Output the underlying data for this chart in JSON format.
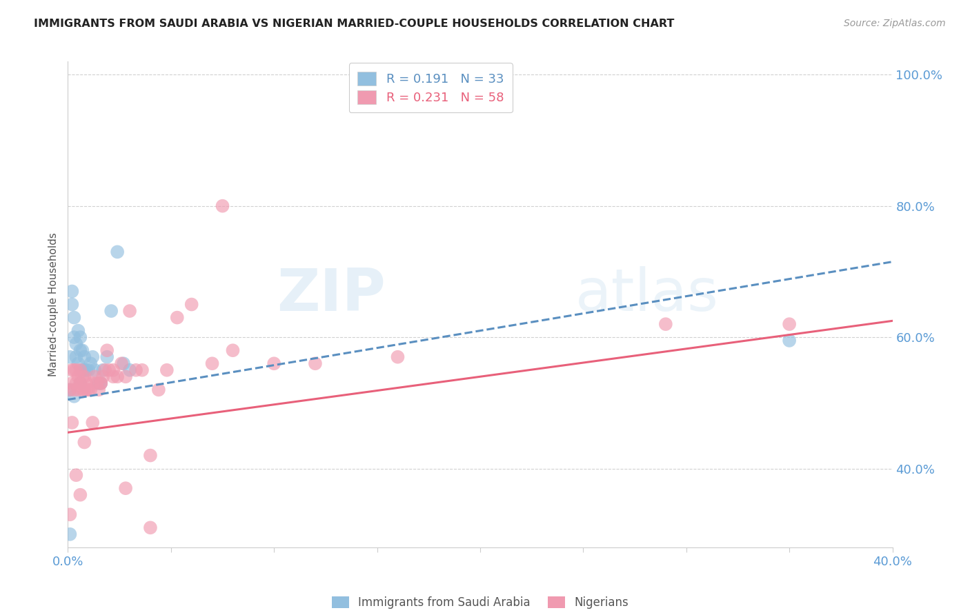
{
  "title": "IMMIGRANTS FROM SAUDI ARABIA VS NIGERIAN MARRIED-COUPLE HOUSEHOLDS CORRELATION CHART",
  "source": "Source: ZipAtlas.com",
  "ylabel": "Married-couple Households",
  "xlim": [
    0.0,
    0.4
  ],
  "ylim": [
    0.28,
    1.02
  ],
  "ytick_vals": [
    0.4,
    0.6,
    0.8,
    1.0
  ],
  "ytick_labels": [
    "40.0%",
    "60.0%",
    "80.0%",
    "100.0%"
  ],
  "xtick_show": [
    "0.0%",
    "40.0%"
  ],
  "series1_color": "#92bfdf",
  "series2_color": "#f09ab0",
  "line1_color": "#5a8fc0",
  "line2_color": "#e8607a",
  "background_color": "#ffffff",
  "grid_color": "#d0d0d0",
  "axis_color": "#5b9bd5",
  "watermark": "ZIPatlas",
  "title_fontsize": 11.5,
  "source_fontsize": 10,
  "sa_line_x0": 0.0,
  "sa_line_y0": 0.505,
  "sa_line_x1": 0.4,
  "sa_line_y1": 0.715,
  "ng_line_x0": 0.0,
  "ng_line_y0": 0.455,
  "ng_line_x1": 0.4,
  "ng_line_y1": 0.625,
  "sa_x": [
    0.001,
    0.002,
    0.002,
    0.003,
    0.003,
    0.004,
    0.004,
    0.005,
    0.005,
    0.006,
    0.006,
    0.007,
    0.007,
    0.008,
    0.008,
    0.009,
    0.01,
    0.011,
    0.012,
    0.013,
    0.015,
    0.016,
    0.017,
    0.019,
    0.021,
    0.024,
    0.027,
    0.03,
    0.001,
    0.003,
    0.006,
    0.35,
    0.001
  ],
  "sa_y": [
    0.57,
    0.65,
    0.67,
    0.6,
    0.63,
    0.57,
    0.59,
    0.56,
    0.61,
    0.58,
    0.6,
    0.55,
    0.58,
    0.57,
    0.55,
    0.55,
    0.55,
    0.56,
    0.57,
    0.55,
    0.53,
    0.53,
    0.55,
    0.57,
    0.64,
    0.73,
    0.56,
    0.55,
    0.52,
    0.51,
    0.53,
    0.595,
    0.3
  ],
  "ng_x": [
    0.001,
    0.002,
    0.002,
    0.003,
    0.003,
    0.004,
    0.004,
    0.005,
    0.005,
    0.006,
    0.006,
    0.007,
    0.007,
    0.008,
    0.008,
    0.009,
    0.009,
    0.01,
    0.011,
    0.012,
    0.013,
    0.014,
    0.015,
    0.016,
    0.017,
    0.018,
    0.019,
    0.02,
    0.022,
    0.024,
    0.026,
    0.028,
    0.03,
    0.033,
    0.036,
    0.04,
    0.044,
    0.048,
    0.053,
    0.06,
    0.07,
    0.08,
    0.1,
    0.12,
    0.16,
    0.35,
    0.001,
    0.002,
    0.004,
    0.006,
    0.008,
    0.012,
    0.016,
    0.022,
    0.028,
    0.04,
    0.075,
    0.29
  ],
  "ng_y": [
    0.52,
    0.53,
    0.55,
    0.52,
    0.55,
    0.53,
    0.55,
    0.52,
    0.54,
    0.53,
    0.55,
    0.52,
    0.54,
    0.52,
    0.54,
    0.53,
    0.52,
    0.52,
    0.52,
    0.53,
    0.54,
    0.53,
    0.52,
    0.53,
    0.54,
    0.55,
    0.58,
    0.55,
    0.54,
    0.54,
    0.56,
    0.54,
    0.64,
    0.55,
    0.55,
    0.42,
    0.52,
    0.55,
    0.63,
    0.65,
    0.56,
    0.58,
    0.56,
    0.56,
    0.57,
    0.62,
    0.33,
    0.47,
    0.39,
    0.36,
    0.44,
    0.47,
    0.53,
    0.55,
    0.37,
    0.31,
    0.8,
    0.62
  ]
}
